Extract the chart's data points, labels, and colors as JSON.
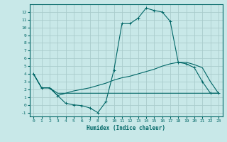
{
  "xlabel": "Humidex (Indice chaleur)",
  "background_color": "#c8e8e8",
  "grid_color": "#aacccc",
  "line_color": "#006666",
  "xlim": [
    -0.5,
    23.5
  ],
  "ylim": [
    -1.5,
    13.0
  ],
  "xticks": [
    0,
    1,
    2,
    3,
    4,
    5,
    6,
    7,
    8,
    9,
    10,
    11,
    12,
    13,
    14,
    15,
    16,
    17,
    18,
    19,
    20,
    21,
    22,
    23
  ],
  "yticks": [
    -1,
    0,
    1,
    2,
    3,
    4,
    5,
    6,
    7,
    8,
    9,
    10,
    11,
    12
  ],
  "spike_x": [
    0,
    1,
    2,
    3,
    4,
    5,
    6,
    7,
    8,
    9,
    10,
    11,
    12,
    13,
    14,
    15,
    16,
    17,
    18,
    19,
    20,
    21,
    22,
    23
  ],
  "spike_y": [
    4.0,
    2.2,
    2.2,
    1.2,
    0.2,
    0.0,
    -0.1,
    -0.4,
    -1.0,
    0.4,
    4.5,
    10.5,
    10.5,
    11.2,
    12.5,
    12.2,
    12.0,
    10.8,
    5.5,
    5.3,
    4.8,
    3.0,
    1.5,
    1.5
  ],
  "upper_x": [
    0,
    1,
    2,
    3,
    4,
    5,
    6,
    7,
    8,
    9,
    10,
    11,
    12,
    13,
    14,
    15,
    16,
    17,
    18,
    19,
    20,
    21,
    22,
    23
  ],
  "upper_y": [
    4.0,
    2.2,
    2.2,
    1.2,
    1.5,
    1.8,
    2.0,
    2.2,
    2.5,
    2.8,
    3.2,
    3.5,
    3.7,
    4.0,
    4.3,
    4.6,
    5.0,
    5.3,
    5.5,
    5.5,
    5.2,
    4.8,
    3.0,
    1.5
  ],
  "lower_x": [
    0,
    1,
    2,
    3,
    4,
    5,
    6,
    7,
    8,
    9,
    10,
    11,
    12,
    13,
    14,
    15,
    16,
    17,
    18,
    19,
    20,
    21,
    22,
    23
  ],
  "lower_y": [
    4.0,
    2.2,
    2.2,
    1.5,
    1.5,
    1.5,
    1.5,
    1.5,
    1.5,
    1.5,
    1.5,
    1.5,
    1.5,
    1.5,
    1.5,
    1.5,
    1.5,
    1.5,
    1.5,
    1.5,
    1.5,
    1.5,
    1.5,
    1.5
  ]
}
